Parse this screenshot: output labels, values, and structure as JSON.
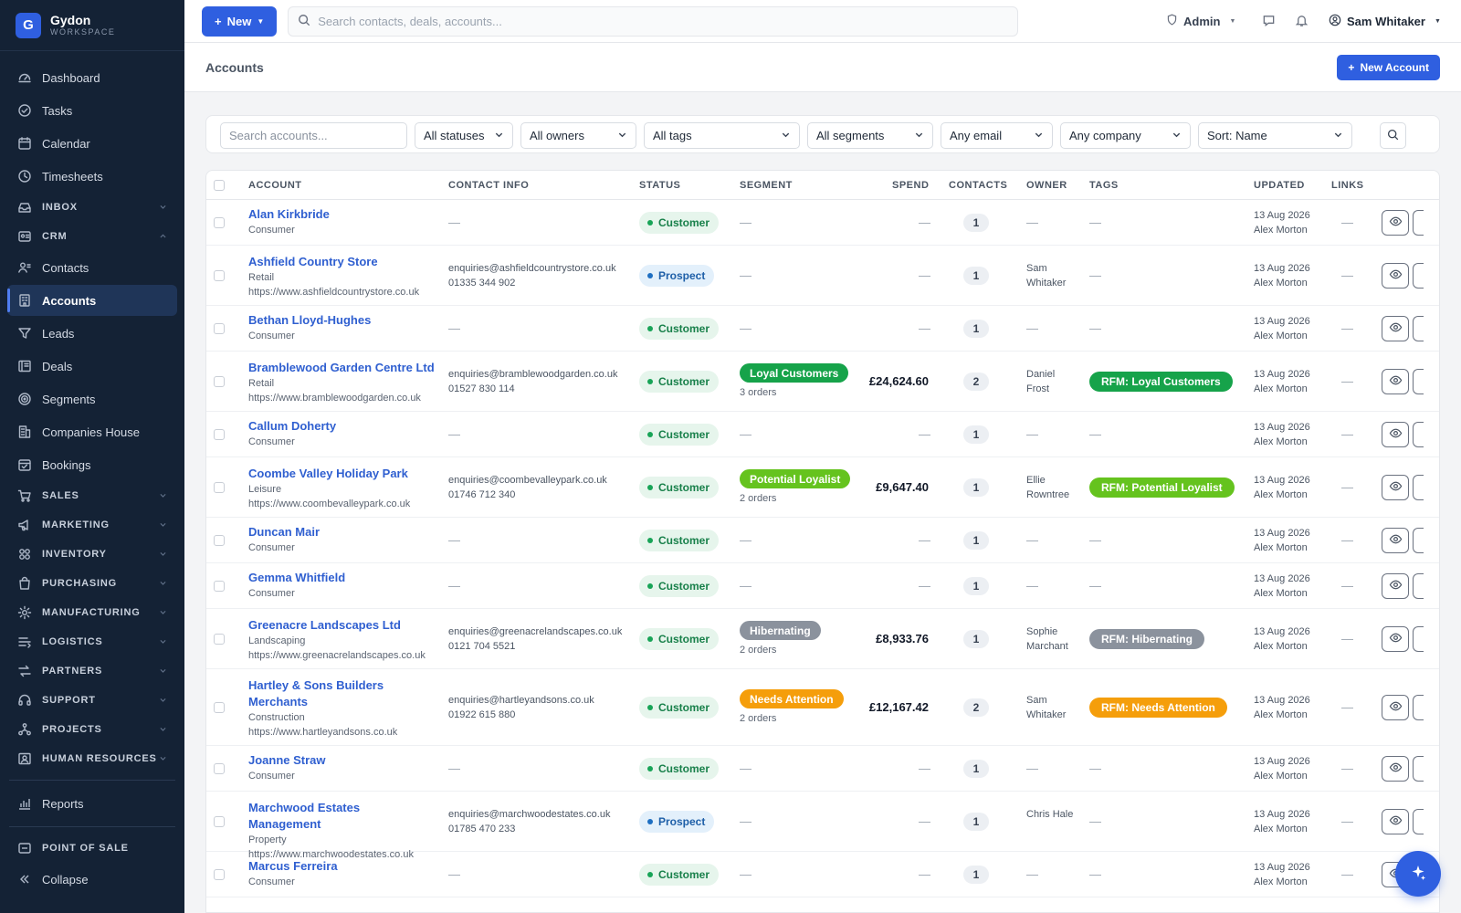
{
  "brand": {
    "initial": "G",
    "name": "Gydon",
    "sub": "WORKSPACE"
  },
  "sidebar": {
    "items": [
      {
        "label": "Dashboard",
        "icon": "dashboard-icon",
        "type": "item"
      },
      {
        "label": "Tasks",
        "icon": "tasks-icon",
        "type": "item"
      },
      {
        "label": "Calendar",
        "icon": "calendar-icon",
        "type": "item"
      },
      {
        "label": "Timesheets",
        "icon": "clock-icon",
        "type": "item"
      },
      {
        "label": "INBOX",
        "icon": "inbox-icon",
        "type": "section",
        "expanded": false
      },
      {
        "label": "CRM",
        "icon": "crm-icon",
        "type": "section",
        "expanded": true
      },
      {
        "label": "Contacts",
        "icon": "contacts-icon",
        "type": "item"
      },
      {
        "label": "Accounts",
        "icon": "accounts-icon",
        "type": "item",
        "active": true
      },
      {
        "label": "Leads",
        "icon": "funnel-icon",
        "type": "item"
      },
      {
        "label": "Deals",
        "icon": "deals-icon",
        "type": "item"
      },
      {
        "label": "Segments",
        "icon": "target-icon",
        "type": "item"
      },
      {
        "label": "Companies House",
        "icon": "building-icon",
        "type": "item"
      },
      {
        "label": "Bookings",
        "icon": "bookings-icon",
        "type": "item"
      },
      {
        "label": "SALES",
        "icon": "cart-icon",
        "type": "section",
        "expanded": false
      },
      {
        "label": "MARKETING",
        "icon": "megaphone-icon",
        "type": "section",
        "expanded": false
      },
      {
        "label": "INVENTORY",
        "icon": "boxes-icon",
        "type": "section",
        "expanded": false
      },
      {
        "label": "PURCHASING",
        "icon": "bag-icon",
        "type": "section",
        "expanded": false
      },
      {
        "label": "MANUFACTURING",
        "icon": "gear-icon",
        "type": "section",
        "expanded": false
      },
      {
        "label": "LOGISTICS",
        "icon": "logistics-icon",
        "type": "section",
        "expanded": false
      },
      {
        "label": "PARTNERS",
        "icon": "arrows-icon",
        "type": "section",
        "expanded": false
      },
      {
        "label": "SUPPORT",
        "icon": "headset-icon",
        "type": "section",
        "expanded": false
      },
      {
        "label": "PROJECTS",
        "icon": "projects-icon",
        "type": "section",
        "expanded": false
      },
      {
        "label": "HUMAN RESOURCES",
        "icon": "id-card-icon",
        "type": "section",
        "expanded": false
      }
    ],
    "reports": "Reports",
    "pos": "POINT OF SALE",
    "collapse": "Collapse"
  },
  "topbar": {
    "new_label": "New",
    "search_placeholder": "Search contacts, deals, accounts...",
    "role": "Admin",
    "user": "Sam Whitaker"
  },
  "page": {
    "title": "Accounts",
    "new_account": "New Account"
  },
  "filters": {
    "search_placeholder": "Search accounts...",
    "status": "All statuses",
    "owner": "All owners",
    "tags": "All tags",
    "segments": "All segments",
    "email": "Any email",
    "company": "Any company",
    "sort": "Sort: Name"
  },
  "table": {
    "headers": {
      "account": "ACCOUNT",
      "contact": "CONTACT INFO",
      "status": "STATUS",
      "segment": "SEGMENT",
      "spend": "SPEND",
      "contacts": "CONTACTS",
      "owner": "OWNER",
      "tags": "TAGS",
      "updated": "UPDATED",
      "links": "LINKS"
    },
    "empty": "—",
    "rows": [
      {
        "name": "Alan Kirkbride",
        "type": "Consumer",
        "url": "",
        "email": "",
        "phone": "",
        "status": "Customer",
        "segment": "",
        "orders": "",
        "seg_color": "",
        "spend": "",
        "contacts": "1",
        "owner": "",
        "tag": "",
        "date": "13 Aug 2026",
        "by": "Alex Morton"
      },
      {
        "name": "Ashfield Country Store",
        "type": "Retail",
        "url": "https://www.ashfieldcountrystore.co.uk",
        "email": "enquiries@ashfieldcountrystore.co.uk",
        "phone": "01335 344 902",
        "status": "Prospect",
        "segment": "",
        "orders": "",
        "seg_color": "",
        "spend": "",
        "contacts": "1",
        "owner": "Sam Whitaker",
        "tag": "",
        "date": "13 Aug 2026",
        "by": "Alex Morton"
      },
      {
        "name": "Bethan Lloyd-Hughes",
        "type": "Consumer",
        "url": "",
        "email": "",
        "phone": "",
        "status": "Customer",
        "segment": "",
        "orders": "",
        "seg_color": "",
        "spend": "",
        "contacts": "1",
        "owner": "",
        "tag": "",
        "date": "13 Aug 2026",
        "by": "Alex Morton"
      },
      {
        "name": "Bramblewood Garden Centre Ltd",
        "type": "Retail",
        "url": "https://www.bramblewoodgarden.co.uk",
        "email": "enquiries@bramblewoodgarden.co.uk",
        "phone": "01527 830 114",
        "status": "Customer",
        "segment": "Loyal Customers",
        "orders": "3 orders",
        "seg_color": "#16a34a",
        "spend": "£24,624.60",
        "contacts": "2",
        "owner": "Daniel Frost",
        "tag": "RFM: Loyal Customers",
        "date": "13 Aug 2026",
        "by": "Alex Morton"
      },
      {
        "name": "Callum Doherty",
        "type": "Consumer",
        "url": "",
        "email": "",
        "phone": "",
        "status": "Customer",
        "segment": "",
        "orders": "",
        "seg_color": "",
        "spend": "",
        "contacts": "1",
        "owner": "",
        "tag": "",
        "date": "13 Aug 2026",
        "by": "Alex Morton"
      },
      {
        "name": "Coombe Valley Holiday Park",
        "type": "Leisure",
        "url": "https://www.coombevalleypark.co.uk",
        "email": "enquiries@coombevalleypark.co.uk",
        "phone": "01746 712 340",
        "status": "Customer",
        "segment": "Potential Loyalist",
        "orders": "2 orders",
        "seg_color": "#65c31e",
        "spend": "£9,647.40",
        "contacts": "1",
        "owner": "Ellie Rowntree",
        "tag": "RFM: Potential Loyalist",
        "date": "13 Aug 2026",
        "by": "Alex Morton"
      },
      {
        "name": "Duncan Mair",
        "type": "Consumer",
        "url": "",
        "email": "",
        "phone": "",
        "status": "Customer",
        "segment": "",
        "orders": "",
        "seg_color": "",
        "spend": "",
        "contacts": "1",
        "owner": "",
        "tag": "",
        "date": "13 Aug 2026",
        "by": "Alex Morton"
      },
      {
        "name": "Gemma Whitfield",
        "type": "Consumer",
        "url": "",
        "email": "",
        "phone": "",
        "status": "Customer",
        "segment": "",
        "orders": "",
        "seg_color": "",
        "spend": "",
        "contacts": "1",
        "owner": "",
        "tag": "",
        "date": "13 Aug 2026",
        "by": "Alex Morton"
      },
      {
        "name": "Greenacre Landscapes Ltd",
        "type": "Landscaping",
        "url": "https://www.greenacrelandscapes.co.uk",
        "email": "enquiries@greenacrelandscapes.co.uk",
        "phone": "0121 704 5521",
        "status": "Customer",
        "segment": "Hibernating",
        "orders": "2 orders",
        "seg_color": "#8b929d",
        "spend": "£8,933.76",
        "contacts": "1",
        "owner": "Sophie Marchant",
        "tag": "RFM: Hibernating",
        "date": "13 Aug 2026",
        "by": "Alex Morton"
      },
      {
        "name": "Hartley & Sons Builders Merchants",
        "type": "Construction",
        "url": "https://www.hartleyandsons.co.uk",
        "email": "enquiries@hartleyandsons.co.uk",
        "phone": "01922 615 880",
        "status": "Customer",
        "segment": "Needs Attention",
        "orders": "2 orders",
        "seg_color": "#f59e0b",
        "spend": "£12,167.42",
        "contacts": "2",
        "owner": "Sam Whitaker",
        "tag": "RFM: Needs Attention",
        "date": "13 Aug 2026",
        "by": "Alex Morton"
      },
      {
        "name": "Joanne Straw",
        "type": "Consumer",
        "url": "",
        "email": "",
        "phone": "",
        "status": "Customer",
        "segment": "",
        "orders": "",
        "seg_color": "",
        "spend": "",
        "contacts": "1",
        "owner": "",
        "tag": "",
        "date": "13 Aug 2026",
        "by": "Alex Morton"
      },
      {
        "name": "Marchwood Estates Management",
        "type": "Property",
        "url": "https://www.marchwoodestates.co.uk",
        "email": "enquiries@marchwoodestates.co.uk",
        "phone": "01785 470 233",
        "status": "Prospect",
        "segment": "",
        "orders": "",
        "seg_color": "",
        "spend": "",
        "contacts": "1",
        "owner": "Chris Hale",
        "tag": "",
        "date": "13 Aug 2026",
        "by": "Alex Morton"
      },
      {
        "name": "Marcus Ferreira",
        "type": "Consumer",
        "url": "",
        "email": "",
        "phone": "",
        "status": "Customer",
        "segment": "",
        "orders": "",
        "seg_color": "",
        "spend": "",
        "contacts": "1",
        "owner": "",
        "tag": "",
        "date": "13 Aug 2026",
        "by": "Alex Morton"
      }
    ]
  }
}
